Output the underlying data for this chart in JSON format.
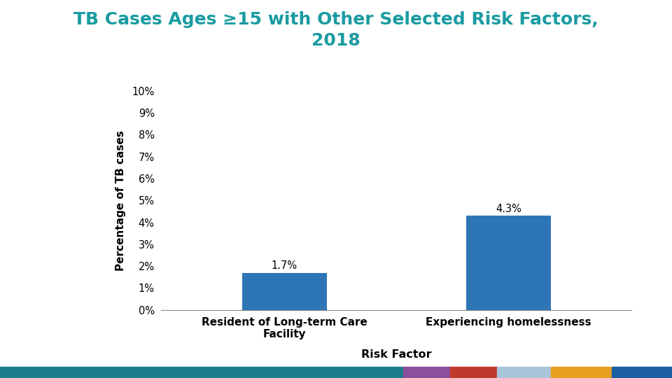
{
  "title_line1": "TB Cases Ages ≥15 with Other Selected Risk Factors,",
  "title_line2": "2018",
  "title_color": "#1a9ba1",
  "categories": [
    "Resident of Long-term Care\nFacility",
    "Experiencing homelessness"
  ],
  "values": [
    1.7,
    4.3
  ],
  "bar_color": "#2e75b6",
  "ylabel": "Percentage of TB cases",
  "xlabel": "Risk Factor",
  "ylim": [
    0,
    10
  ],
  "ytick_labels": [
    "0%",
    "1%",
    "2%",
    "3%",
    "4%",
    "5%",
    "6%",
    "7%",
    "8%",
    "9%",
    "10%"
  ],
  "ytick_values": [
    0,
    1,
    2,
    3,
    4,
    5,
    6,
    7,
    8,
    9,
    10
  ],
  "data_labels": [
    "1.7%",
    "4.3%"
  ],
  "background_color": "#ffffff",
  "bottom_bar_colors": [
    "#1a7f8a",
    "#8b4fa0",
    "#c0392b",
    "#a8c4d8",
    "#e8a020",
    "#1a5fa0"
  ],
  "bottom_bar_widths": [
    0.6,
    0.07,
    0.07,
    0.08,
    0.09,
    0.09
  ]
}
